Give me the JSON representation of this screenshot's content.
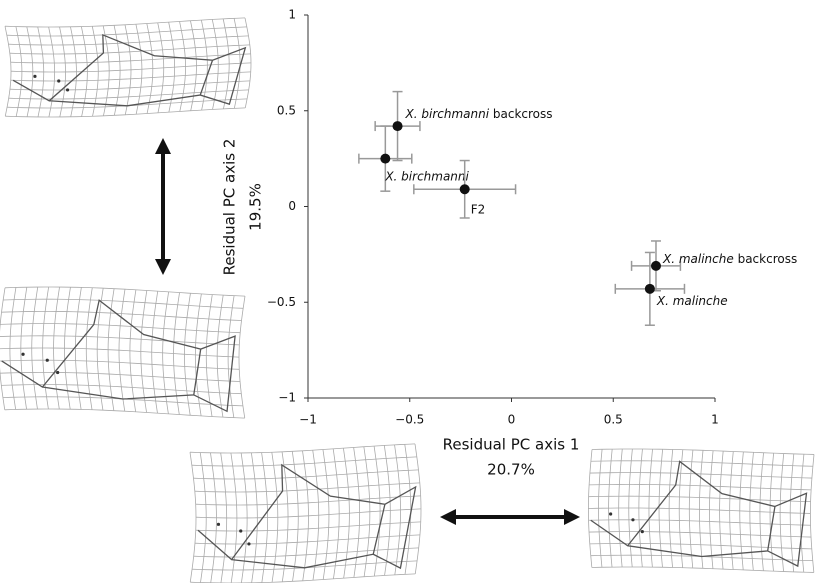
{
  "chart_data": {
    "type": "scatter",
    "x_label": [
      "Residual PC axis 1",
      "20.7%"
    ],
    "y_label": [
      "Residual PC axis 2",
      "19.5%"
    ],
    "xlim": [
      -1,
      1
    ],
    "ylim": [
      -1,
      1
    ],
    "xticks": [
      {
        "value": -1,
        "label": "−1"
      },
      {
        "value": -0.5,
        "label": "−0.5"
      },
      0,
      0.5,
      1
    ],
    "yticks": [
      {
        "value": -1,
        "label": "−1"
      },
      {
        "value": -0.5,
        "label": "−0.5"
      },
      0,
      0.5,
      1
    ],
    "color": "#111111",
    "error_color": "#999999",
    "series": [
      {
        "name": "X. birchmanni",
        "note": "backcross",
        "x": -0.56,
        "y": 0.42,
        "xerr": 0.11,
        "yerr": 0.18
      },
      {
        "name": "X. birchmanni",
        "x": -0.62,
        "y": 0.25,
        "xerr": 0.13,
        "yerr": 0.17
      },
      {
        "name": "F2",
        "italic": false,
        "x": -0.23,
        "y": 0.09,
        "xerr": 0.25,
        "yerr": 0.15
      },
      {
        "name": "X. malinche",
        "note": "backcross",
        "x": 0.71,
        "y": -0.31,
        "xerr": 0.12,
        "yerr": 0.13
      },
      {
        "name": "X. malinche",
        "x": 0.68,
        "y": -0.43,
        "xerr": 0.17,
        "yerr": 0.19
      }
    ]
  }
}
